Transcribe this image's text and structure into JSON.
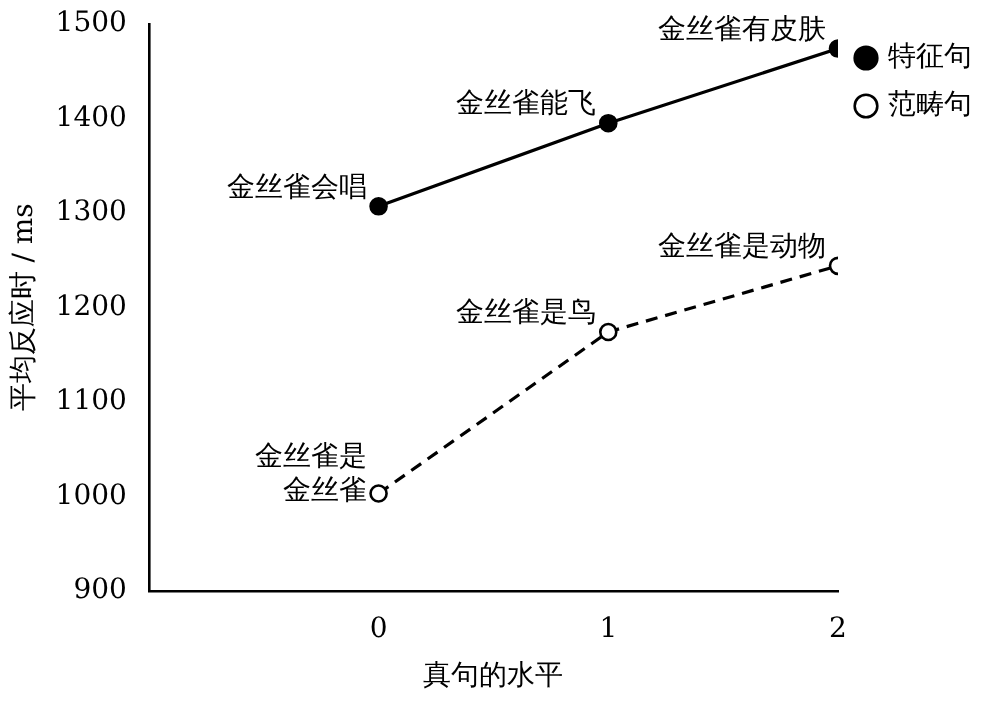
{
  "chart_data": {
    "type": "line",
    "xlabel": "真句的水平",
    "ylabel": "平均反应时 / ms",
    "x": [
      0,
      1,
      2
    ],
    "xlim": [
      -1,
      2
    ],
    "xticks": [
      0,
      1,
      2
    ],
    "ylim": [
      900,
      1500
    ],
    "yticks": [
      900,
      1000,
      1100,
      1200,
      1300,
      1400,
      1500
    ],
    "series": [
      {
        "name": "特征句",
        "color": "#000000",
        "values": [
          1307,
          1395,
          1474
        ],
        "line_style": "solid",
        "marker": "circle"
      },
      {
        "name": "范畴句",
        "color": "#000000",
        "values": [
          1003,
          1174,
          1244
        ],
        "line_style": "dashed",
        "marker": "circle"
      }
    ],
    "annotations": [
      {
        "text": "金丝雀会唱",
        "x": 0,
        "y": 1307
      },
      {
        "text": "金丝雀能飞",
        "x": 1,
        "y": 1395
      },
      {
        "text": "金丝雀有皮肤",
        "x": 2,
        "y": 1474
      },
      {
        "text": "金丝雀是",
        "x": 0,
        "y": 1003
      },
      {
        "text": "金丝雀",
        "x": 0,
        "y": 1003
      },
      {
        "text": "金丝雀是鸟",
        "x": 1,
        "y": 1174
      },
      {
        "text": "金丝雀是动物",
        "x": 2,
        "y": 1244
      }
    ],
    "grid": false,
    "legend": "top right"
  }
}
